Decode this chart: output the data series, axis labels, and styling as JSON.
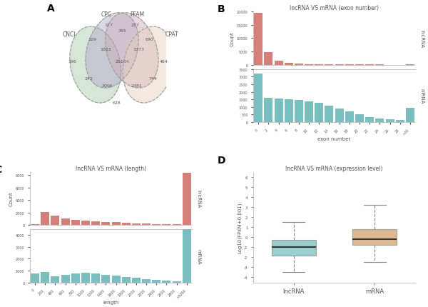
{
  "panel_A": {
    "labels": [
      "CNCI",
      "CPC",
      "PFAM",
      "CPAT"
    ],
    "colors": [
      "#a8c8a8",
      "#b0a8c8",
      "#c8a8b8",
      "#e8d0b8"
    ],
    "numbers": {
      "cnci_only": "196",
      "cpc_only": "377",
      "pfam_only": "257",
      "cpat_only": "464",
      "cnci_cpc": "329",
      "cpc_pfam": "355",
      "pfam_cpat": "690",
      "cnci_cpc_pfam": "1063",
      "cpc_pfam_cpat": "3373",
      "cnci_cpat": "242",
      "cnci_cpc_pfam_cpat": "25104",
      "cnci_cpc_cpat": "2006",
      "cpc_pfam_cpat2": "2381",
      "cnci_pfam": "628",
      "cnci_pfam_cpat": "744"
    }
  },
  "panel_B": {
    "title": "lncRNA VS mRNA (exon number)",
    "xlabel": "exon number",
    "ylabel": "Count",
    "lncrna_color": "#d4807a",
    "mrna_color": "#7abfbf",
    "lncrna_label": "lncRNA",
    "mrna_label": "mRNA",
    "exon_labels": [
      "0",
      "2",
      "4",
      "6",
      "8",
      "10",
      "12",
      "14",
      "16",
      "18",
      "20",
      "22",
      "24",
      "26",
      "28",
      ">30"
    ],
    "lncrna_values": [
      19500,
      4700,
      1500,
      700,
      400,
      250,
      200,
      150,
      120,
      100,
      80,
      60,
      50,
      40,
      30,
      150
    ],
    "mrna_values": [
      3200,
      1600,
      1550,
      1500,
      1450,
      1350,
      1250,
      1100,
      900,
      700,
      500,
      350,
      250,
      180,
      120,
      950
    ],
    "lncrna_ylim": [
      0,
      20000
    ],
    "mrna_ylim": [
      0,
      3500
    ],
    "lncrna_yticks": [
      0,
      5000,
      10000,
      15000,
      20000
    ],
    "mrna_yticks": [
      0,
      500,
      1000,
      1500,
      2000,
      2500,
      3000,
      3500
    ]
  },
  "panel_C": {
    "title": "lncRNA VS mRNA (length)",
    "xlabel": "length",
    "ylabel": "Count",
    "lncrna_color": "#d4807a",
    "mrna_color": "#7abfbf",
    "lncrna_label": "lncRNA",
    "mrna_label": "mRNA",
    "length_labels": [
      "0",
      "200",
      "400",
      "600",
      "800",
      "1000",
      "1200",
      "1400",
      "1600",
      "1800",
      "2000",
      "2200",
      "2400",
      "2600",
      "2800",
      ">3000"
    ],
    "lncrna_values": [
      100,
      2050,
      1500,
      1100,
      800,
      700,
      600,
      500,
      420,
      350,
      280,
      220,
      170,
      130,
      100,
      8400
    ],
    "mrna_values": [
      750,
      850,
      500,
      650,
      750,
      800,
      750,
      620,
      550,
      470,
      380,
      280,
      200,
      150,
      100,
      4500
    ],
    "lncrna_ylim": [
      0,
      8500
    ],
    "mrna_ylim": [
      0,
      4500
    ],
    "lncrna_yticks": [
      0,
      2000,
      4000,
      6000,
      8000
    ],
    "mrna_yticks": [
      0,
      1000,
      2000,
      3000,
      4000
    ]
  },
  "panel_D": {
    "title": "lncRNA VS mRNA (expression level)",
    "ylabel": "Log10(FPKM+0.001)",
    "lncrna_color": "#7abfbf",
    "mrna_color": "#d4a070",
    "lncrna_label": "lncRNA",
    "mrna_label": "mRNA",
    "lncrna_stats": {
      "median": -1.0,
      "q1": -1.8,
      "q3": -0.3,
      "whislo": -3.5,
      "whishi": 1.5
    },
    "mrna_stats": {
      "median": -0.2,
      "q1": -0.8,
      "q3": 0.8,
      "whislo": -2.5,
      "whishi": 3.2
    },
    "ylim": [
      -4.5,
      6.5
    ],
    "yticks": [
      -4,
      -3,
      -2,
      -1,
      0,
      1,
      2,
      3,
      4,
      5,
      6
    ]
  },
  "background_color": "#ffffff",
  "font_color": "#555555"
}
